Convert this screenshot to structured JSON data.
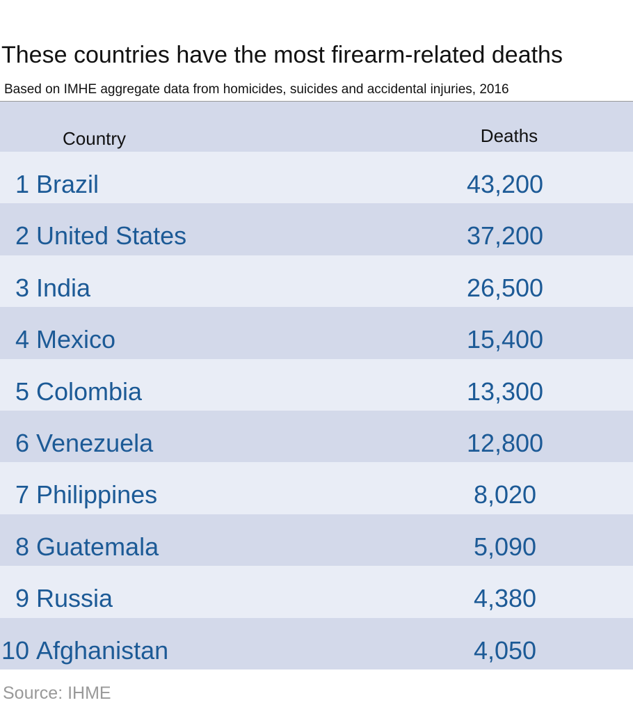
{
  "header": {
    "title": "These countries have the most firearm-related deaths",
    "subtitle": "Based on IMHE aggregate data from homicides, suicides and accidental injuries, 2016"
  },
  "table": {
    "columns": [
      "Country",
      "Deaths"
    ],
    "rows": [
      [
        1,
        "Brazil",
        "43,200"
      ],
      [
        2,
        "United States",
        "37,200"
      ],
      [
        3,
        "India",
        "26,500"
      ],
      [
        4,
        "Mexico",
        "15,400"
      ],
      [
        5,
        "Colombia",
        "13,300"
      ],
      [
        6,
        "Venezuela",
        "12,800"
      ],
      [
        7,
        "Philippines",
        "8,020"
      ],
      [
        8,
        "Guatemala",
        "5,090"
      ],
      [
        9,
        "Russia",
        "4,380"
      ],
      [
        10,
        "Afghanistan",
        "4,050"
      ]
    ]
  },
  "footer": {
    "source": "Source: IHME"
  }
}
